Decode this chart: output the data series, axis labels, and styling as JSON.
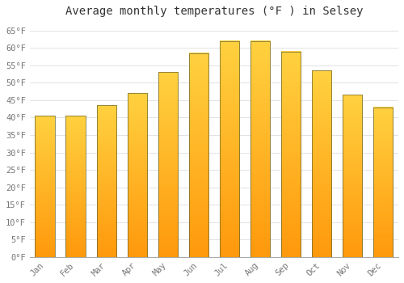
{
  "title": "Average monthly temperatures (°F ) in Selsey",
  "months": [
    "Jan",
    "Feb",
    "Mar",
    "Apr",
    "May",
    "Jun",
    "Jul",
    "Aug",
    "Sep",
    "Oct",
    "Nov",
    "Dec"
  ],
  "values": [
    40.5,
    40.5,
    43.5,
    47,
    53,
    58.5,
    62,
    62,
    59,
    53.5,
    46.5,
    43
  ],
  "bar_color": "#FFAA00",
  "bar_color_light": "#FFCC44",
  "bar_edge_color": "#888855",
  "background_color": "#FFFFFF",
  "grid_color": "#DDDDDD",
  "yticks": [
    0,
    5,
    10,
    15,
    20,
    25,
    30,
    35,
    40,
    45,
    50,
    55,
    60,
    65
  ],
  "ylim": [
    0,
    67
  ],
  "title_fontsize": 10,
  "tick_fontsize": 7.5,
  "tick_color": "#777777",
  "title_color": "#333333",
  "font_family": "monospace"
}
